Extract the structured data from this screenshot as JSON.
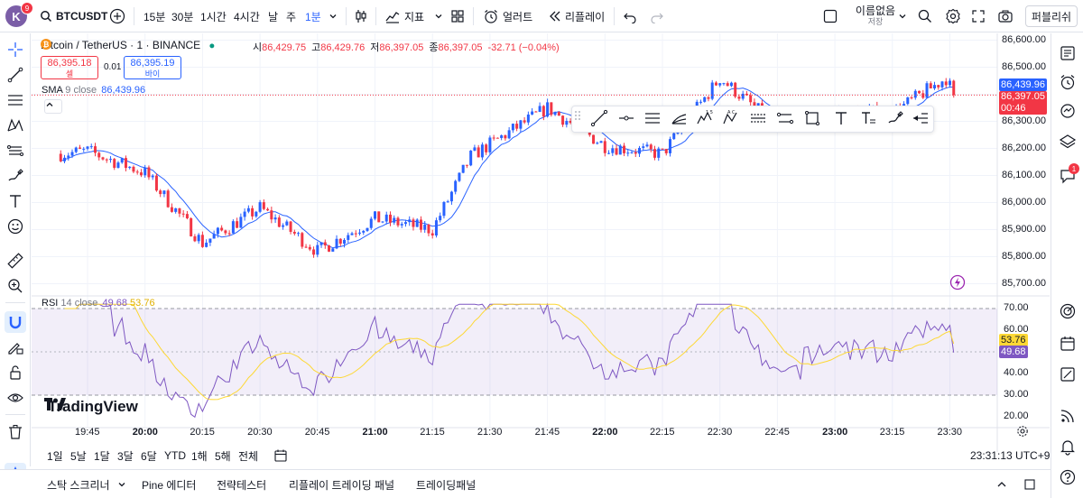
{
  "header": {
    "avatar_letter": "K",
    "avatar_badge": "9",
    "symbol": "BTCUSDT",
    "intervals": [
      "15분",
      "30분",
      "1시간",
      "4시간",
      "날",
      "주",
      "1분"
    ],
    "indicators_label": "지표",
    "alert_label": "얼러트",
    "replay_label": "리플레이",
    "layout_name": "이름없음",
    "layout_saved": "저장",
    "publish_label": "퍼블리쉬"
  },
  "legend": {
    "title": "Bitcoin / TetherUS · 1 · BINANCE",
    "open_label": "시",
    "open": "86,429.75",
    "high_label": "고",
    "high": "86,429.76",
    "low_label": "저",
    "low": "86,397.05",
    "close_label": "종",
    "close": "86,397.05",
    "change": "-32.71 (−0.04%)",
    "sell_price": "86,395.18",
    "sell_label": "셀",
    "spread": "0.01",
    "buy_price": "86,395.19",
    "buy_label": "바이",
    "sma_label": "SMA",
    "sma_params": "9 close",
    "sma_value": "86,439.96",
    "rsi_label": "RSI",
    "rsi_params": "14 close",
    "rsi_value": "49.68",
    "rsi_ma_value": "53.76"
  },
  "colors": {
    "up": "#2962ff",
    "down": "#f23645",
    "sma": "#2962ff",
    "rsi": "#7e57c2",
    "rsi_ma": "#fdd835",
    "rsi_band": "#7e57c2"
  },
  "price_axis": {
    "ticks": [
      "86,600.00",
      "86,500.00",
      "86,400.00",
      "86,300.00",
      "86,200.00",
      "86,100.00",
      "86,000.00",
      "85,900.00",
      "85,800.00",
      "85,700.00"
    ],
    "sma_tag": "86,439.96",
    "last_tag": "86,397.05",
    "countdown": "00:46"
  },
  "rsi_axis": {
    "ticks": [
      "70.00",
      "60.00",
      "40.00",
      "30.00",
      "20.00"
    ],
    "ma_tag": "53.76",
    "rsi_tag": "49.68"
  },
  "time_axis": {
    "ticks": [
      "19:45",
      "20:00",
      "20:15",
      "20:30",
      "20:45",
      "21:00",
      "21:15",
      "21:30",
      "21:45",
      "22:00",
      "22:15",
      "22:30",
      "22:45",
      "23:00",
      "23:15",
      "23:30"
    ],
    "bold": [
      "20:00",
      "21:00",
      "22:00",
      "23:00"
    ]
  },
  "watermark": "TradingView",
  "ranges": [
    "1일",
    "5날",
    "1달",
    "3달",
    "6달",
    "YTD",
    "1해",
    "5해",
    "전체"
  ],
  "clock": "23:31:13 UTC+9",
  "bottom_tabs": [
    "스탁 스크리너",
    "Pine 에디터",
    "전략테스터",
    "리플레이 트레이딩 패널",
    "트레이딩패널"
  ],
  "right_badge": "1",
  "chart_data": {
    "type": "candlestick",
    "interval_minutes": 1,
    "x_range": [
      "19:37",
      "23:31"
    ],
    "ylim": [
      85680,
      86620
    ],
    "last_price": 86397.05,
    "sma_last": 86439.96,
    "anchors": [
      {
        "time": "19:38",
        "price": 86180
      },
      {
        "time": "19:45",
        "price": 86190
      },
      {
        "time": "20:00",
        "price": 86110
      },
      {
        "time": "20:15",
        "price": 85850
      },
      {
        "time": "20:30",
        "price": 85980
      },
      {
        "time": "20:45",
        "price": 85820
      },
      {
        "time": "21:00",
        "price": 85940
      },
      {
        "time": "21:15",
        "price": 85900
      },
      {
        "time": "21:25",
        "price": 86170
      },
      {
        "time": "21:45",
        "price": 86350
      },
      {
        "time": "22:00",
        "price": 86210
      },
      {
        "time": "22:15",
        "price": 86180
      },
      {
        "time": "22:30",
        "price": 86460
      },
      {
        "time": "22:45",
        "price": 86280
      },
      {
        "time": "23:00",
        "price": 86340
      },
      {
        "time": "23:15",
        "price": 86330
      },
      {
        "time": "23:29",
        "price": 86460
      },
      {
        "time": "23:31",
        "price": 86397
      }
    ],
    "rsi": {
      "period": 14,
      "ylim": [
        18,
        72
      ],
      "overbought": 70,
      "oversold": 30,
      "last": 49.68,
      "ma_last": 53.76
    }
  }
}
